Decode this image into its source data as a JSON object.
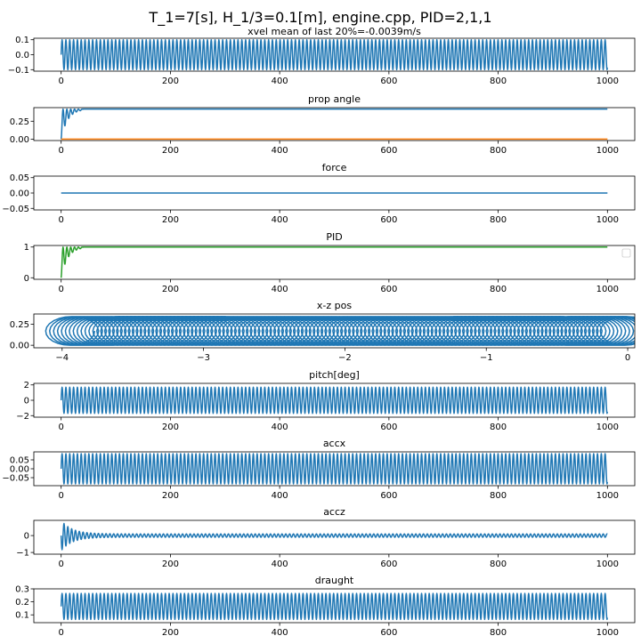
{
  "figure": {
    "suptitle": "T_1=7[s], H_1/3=0.1[m], engine.cpp, PID=2,1,1"
  },
  "chart_data": [
    {
      "type": "line",
      "title": "xvel mean of last 20%=-0.0039m/s",
      "xlim": [
        -50,
        1050
      ],
      "ylim": [
        -0.11,
        0.11
      ],
      "x_ticks": [
        0,
        200,
        400,
        600,
        800,
        1000
      ],
      "y_ticks": [
        -0.1,
        0.0,
        0.1
      ],
      "y_tick_labels": [
        "−0.1",
        "0.0",
        "0.1"
      ],
      "series": [
        {
          "color": "#1f77b4",
          "kind": "oscillation",
          "x_range": [
            0,
            1000
          ],
          "center": 0,
          "amplitude": 0.1,
          "period": 7
        }
      ]
    },
    {
      "type": "line",
      "title": "prop angle",
      "xlim": [
        -50,
        1050
      ],
      "ylim": [
        -0.02,
        0.44
      ],
      "x_ticks": [
        0,
        200,
        400,
        600,
        800,
        1000
      ],
      "y_ticks": [
        0.0,
        0.25
      ],
      "y_tick_labels": [
        "0.00",
        "0.25"
      ],
      "series": [
        {
          "color": "#1f77b4",
          "kind": "decay",
          "x_range": [
            0,
            1000
          ],
          "start": 0.0,
          "settle": 0.42,
          "decay_until": 40,
          "period": 7
        },
        {
          "color": "#ff7f0e",
          "kind": "constant",
          "x_range": [
            0,
            1000
          ],
          "value": 0.0
        }
      ]
    },
    {
      "type": "line",
      "title": "force",
      "xlim": [
        -50,
        1050
      ],
      "ylim": [
        -0.055,
        0.055
      ],
      "x_ticks": [
        0,
        200,
        400,
        600,
        800,
        1000
      ],
      "y_ticks": [
        -0.05,
        0.0,
        0.05
      ],
      "y_tick_labels": [
        "−0.05",
        "0.00",
        "0.05"
      ],
      "series": [
        {
          "color": "#1f77b4",
          "kind": "constant",
          "x_range": [
            0,
            1000
          ],
          "value": 0.0
        }
      ]
    },
    {
      "type": "line",
      "title": "PID",
      "xlim": [
        -50,
        1050
      ],
      "ylim": [
        -0.05,
        1.05
      ],
      "x_ticks": [
        0,
        200,
        400,
        600,
        800,
        1000
      ],
      "y_ticks": [
        0,
        1
      ],
      "y_tick_labels": [
        "0",
        "1"
      ],
      "legend": "top-right",
      "series": [
        {
          "color": "#2ca02c",
          "kind": "decay",
          "x_range": [
            0,
            1000
          ],
          "start": 0.0,
          "settle": 1.0,
          "decay_until": 40,
          "period": 7
        }
      ]
    },
    {
      "type": "line",
      "title": "x-z pos",
      "xlim": [
        -4.2,
        0.05
      ],
      "ylim": [
        -0.03,
        0.37
      ],
      "x_ticks": [
        -4,
        -3,
        -2,
        -1,
        0
      ],
      "x_tick_labels": [
        "−4",
        "−3",
        "−2",
        "−1",
        "0"
      ],
      "y_ticks": [
        0.0,
        0.25
      ],
      "y_tick_labels": [
        "0.00",
        "0.25"
      ],
      "series": [
        {
          "color": "#1f77b4",
          "kind": "orbit",
          "x_start": 0.0,
          "x_end": -3.95,
          "z_center": 0.17,
          "x_radius": 0.18,
          "z_radius": 0.17,
          "loops": 142
        }
      ]
    },
    {
      "type": "line",
      "title": "pitch[deg]",
      "xlim": [
        -50,
        1050
      ],
      "ylim": [
        -2.2,
        2.2
      ],
      "x_ticks": [
        0,
        200,
        400,
        600,
        800,
        1000
      ],
      "y_ticks": [
        -2,
        0,
        2
      ],
      "y_tick_labels": [
        "−2",
        "0",
        "2"
      ],
      "series": [
        {
          "color": "#1f77b4",
          "kind": "oscillation",
          "x_range": [
            0,
            1000
          ],
          "center": 0,
          "amplitude": 1.7,
          "period": 7
        }
      ]
    },
    {
      "type": "line",
      "title": "accx",
      "xlim": [
        -50,
        1050
      ],
      "ylim": [
        -0.095,
        0.095
      ],
      "x_ticks": [
        0,
        200,
        400,
        600,
        800,
        1000
      ],
      "y_ticks": [
        -0.05,
        0.0,
        0.05
      ],
      "y_tick_labels": [
        "−0.05",
        "0.00",
        "0.05"
      ],
      "series": [
        {
          "color": "#1f77b4",
          "kind": "oscillation",
          "x_range": [
            0,
            1000
          ],
          "center": 0,
          "amplitude": 0.085,
          "period": 7
        }
      ]
    },
    {
      "type": "line",
      "title": "accz",
      "xlim": [
        -50,
        1050
      ],
      "ylim": [
        -1.1,
        0.9
      ],
      "x_ticks": [
        0,
        200,
        400,
        600,
        800,
        1000
      ],
      "y_ticks": [
        -1,
        0
      ],
      "y_tick_labels": [
        "−1",
        "0"
      ],
      "series": [
        {
          "color": "#1f77b4",
          "kind": "damped",
          "x_range": [
            0,
            1000
          ],
          "center": 0,
          "initial_amplitude": 0.9,
          "final_amplitude": 0.1,
          "period": 7
        }
      ]
    },
    {
      "type": "line",
      "title": "draught",
      "xlim": [
        -50,
        1050
      ],
      "ylim": [
        0.04,
        0.3
      ],
      "x_ticks": [
        0,
        200,
        400,
        600,
        800,
        1000
      ],
      "y_ticks": [
        0.1,
        0.2,
        0.3
      ],
      "y_tick_labels": [
        "0.1",
        "0.2",
        "0.3"
      ],
      "series": [
        {
          "color": "#1f77b4",
          "kind": "oscillation",
          "x_range": [
            0,
            1000
          ],
          "center": 0.165,
          "amplitude": 0.1,
          "period": 7
        }
      ]
    }
  ]
}
